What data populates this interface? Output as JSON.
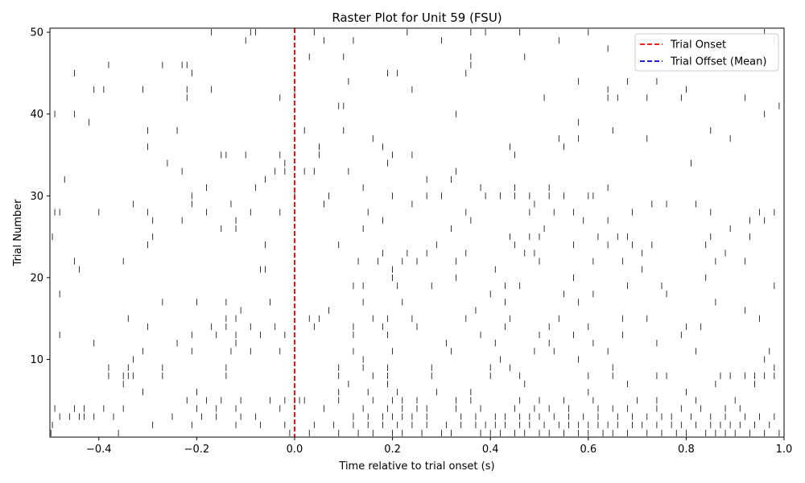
{
  "chart_data": {
    "type": "raster",
    "title": "Raster Plot for Unit 59 (FSU)",
    "xlabel": "Time relative to trial onset (s)",
    "ylabel": "Trial Number",
    "xlim": [
      -0.5,
      1.0
    ],
    "ylim": [
      0.5,
      50.5
    ],
    "xticks": [
      -0.4,
      -0.2,
      0.0,
      0.2,
      0.4,
      0.6,
      0.8,
      1.0
    ],
    "xtick_labels": [
      "−0.4",
      "−0.2",
      "0.0",
      "0.2",
      "0.4",
      "0.6",
      "0.8",
      "1.0"
    ],
    "yticks": [
      10,
      20,
      30,
      40,
      50
    ],
    "ytick_labels": [
      "10",
      "20",
      "30",
      "40",
      "50"
    ],
    "grid": false,
    "legend": {
      "placement": "top-right",
      "entries": [
        {
          "label": "Trial Onset",
          "color": "#ff0000",
          "style": "dashed"
        },
        {
          "label": "Trial Offset (Mean)",
          "color": "#0000cc",
          "style": "dashed"
        }
      ]
    },
    "onset_line": {
      "x": 0.0,
      "color": "#dd0000"
    },
    "spike_color": "#000000",
    "trials": [
      {
        "trial": 1,
        "spikes": [
          -0.498,
          -0.36,
          -0.01,
          0.03,
          0.09,
          0.13,
          0.16,
          0.2,
          0.22,
          0.26,
          0.3,
          0.32,
          0.38,
          0.4,
          0.42,
          0.45,
          0.47,
          0.5,
          0.52,
          0.55,
          0.58,
          0.6,
          0.63,
          0.65,
          0.68,
          0.72,
          0.75,
          0.78,
          0.8,
          0.84,
          0.86,
          0.88,
          0.9,
          0.93,
          0.96,
          0.99
        ]
      },
      {
        "trial": 2,
        "spikes": [
          -0.495,
          -0.29,
          -0.21,
          -0.12,
          -0.07,
          -0.02,
          0.04,
          0.08,
          0.12,
          0.15,
          0.18,
          0.21,
          0.24,
          0.27,
          0.31,
          0.34,
          0.37,
          0.39,
          0.41,
          0.43,
          0.46,
          0.48,
          0.51,
          0.54,
          0.56,
          0.58,
          0.6,
          0.62,
          0.64,
          0.66,
          0.69,
          0.71,
          0.74,
          0.77,
          0.79,
          0.82,
          0.85,
          0.87,
          0.89,
          0.91,
          0.94,
          0.97
        ]
      },
      {
        "trial": 3,
        "spikes": [
          -0.48,
          -0.46,
          -0.44,
          -0.43,
          -0.41,
          -0.37,
          -0.25,
          -0.19,
          -0.16,
          -0.11,
          -0.08,
          0.12,
          0.15,
          0.18,
          0.2,
          0.22,
          0.24,
          0.27,
          0.34,
          0.37,
          0.41,
          0.43,
          0.46,
          0.48,
          0.5,
          0.53,
          0.56,
          0.59,
          0.62,
          0.66,
          0.69,
          0.72,
          0.75,
          0.77,
          0.81,
          0.85,
          0.88,
          0.92,
          0.95,
          0.98
        ]
      },
      {
        "trial": 4,
        "spikes": [
          -0.49,
          -0.45,
          -0.43,
          -0.39,
          -0.35,
          -0.2,
          -0.16,
          -0.12,
          -0.03,
          0.06,
          0.14,
          0.19,
          0.22,
          0.25,
          0.27,
          0.33,
          0.38,
          0.45,
          0.49,
          0.52,
          0.56,
          0.62,
          0.65,
          0.68,
          0.74,
          0.79,
          0.83,
          0.88,
          0.91
        ]
      },
      {
        "trial": 5,
        "spikes": [
          -0.22,
          -0.18,
          -0.15,
          -0.11,
          -0.05,
          -0.02,
          0.0,
          0.01,
          0.02,
          0.09,
          0.16,
          0.2,
          0.22,
          0.25,
          0.33,
          0.36,
          0.46,
          0.5,
          0.55,
          0.61,
          0.7,
          0.74,
          0.82,
          0.9
        ]
      },
      {
        "trial": 6,
        "spikes": [
          -0.31,
          -0.2,
          0.09,
          0.15,
          0.21,
          0.29,
          0.36,
          0.6,
          0.8
        ]
      },
      {
        "trial": 7,
        "spikes": [
          -0.35,
          0.11,
          0.19,
          0.47,
          0.68,
          0.86,
          0.94
        ]
      },
      {
        "trial": 8,
        "spikes": [
          -0.38,
          -0.35,
          -0.34,
          -0.33,
          -0.27,
          -0.14,
          0.09,
          0.16,
          0.19,
          0.28,
          0.4,
          0.46,
          0.6,
          0.65,
          0.74,
          0.76,
          0.87,
          0.89,
          0.92,
          0.94,
          0.96,
          0.98
        ]
      },
      {
        "trial": 9,
        "spikes": [
          -0.38,
          -0.34,
          -0.27,
          -0.14,
          0.09,
          0.14,
          0.19,
          0.28,
          0.4,
          0.44,
          0.65,
          0.98
        ]
      },
      {
        "trial": 10,
        "spikes": [
          -0.33,
          0.14,
          0.42,
          0.58,
          0.96
        ]
      },
      {
        "trial": 11,
        "spikes": [
          -0.31,
          -0.21,
          -0.13,
          -0.09,
          -0.03,
          0.12,
          0.2,
          0.32,
          0.49,
          0.53,
          0.64,
          0.82,
          0.97
        ]
      },
      {
        "trial": 12,
        "spikes": [
          -0.41,
          -0.24,
          -0.12,
          0.31,
          0.41,
          0.52,
          0.61,
          0.74
        ]
      },
      {
        "trial": 13,
        "spikes": [
          -0.48,
          -0.21,
          -0.16,
          -0.12,
          -0.07,
          -0.02,
          0.12,
          0.19,
          0.38,
          0.5,
          0.57,
          0.67,
          0.79
        ]
      },
      {
        "trial": 14,
        "spikes": [
          -0.3,
          -0.17,
          -0.14,
          -0.09,
          -0.04,
          0.04,
          0.12,
          0.18,
          0.25,
          0.43,
          0.52,
          0.6,
          0.8,
          0.83
        ]
      },
      {
        "trial": 15,
        "spikes": [
          -0.34,
          -0.14,
          -0.12,
          0.03,
          0.05,
          0.16,
          0.19,
          0.24,
          0.35,
          0.44,
          0.54,
          0.67,
          0.72,
          0.95
        ]
      },
      {
        "trial": 16,
        "spikes": [
          -0.11,
          0.07,
          0.37,
          0.92
        ]
      },
      {
        "trial": 17,
        "spikes": [
          -0.27,
          -0.2,
          -0.14,
          -0.05,
          0.14,
          0.22,
          0.43,
          0.58,
          0.86
        ]
      },
      {
        "trial": 18,
        "spikes": [
          -0.48,
          0.4,
          0.55,
          0.61,
          0.76
        ]
      },
      {
        "trial": 19,
        "spikes": [
          0.12,
          0.14,
          0.21,
          0.28,
          0.43,
          0.46,
          0.68,
          0.75,
          0.98
        ]
      },
      {
        "trial": 20,
        "spikes": [
          0.2,
          0.33,
          0.57,
          0.84
        ]
      },
      {
        "trial": 21,
        "spikes": [
          -0.44,
          -0.07,
          -0.06,
          0.2,
          0.41,
          0.71
        ]
      },
      {
        "trial": 22,
        "spikes": [
          -0.45,
          -0.35,
          0.13,
          0.17,
          0.22,
          0.25,
          0.33,
          0.5,
          0.61,
          0.67,
          0.86,
          0.92
        ]
      },
      {
        "trial": 23,
        "spikes": [
          0.18,
          0.23,
          0.27,
          0.35,
          0.47,
          0.49,
          0.71,
          0.88
        ]
      },
      {
        "trial": 24,
        "spikes": [
          -0.3,
          -0.06,
          0.09,
          0.29,
          0.45,
          0.57,
          0.64,
          0.69,
          0.73,
          0.84
        ]
      },
      {
        "trial": 25,
        "spikes": [
          -0.495,
          -0.29,
          0.44,
          0.48,
          0.5,
          0.62,
          0.66,
          0.68,
          0.85,
          0.93
        ]
      },
      {
        "trial": 26,
        "spikes": [
          -0.15,
          -0.12,
          0.14,
          0.32,
          0.51,
          0.89
        ]
      },
      {
        "trial": 27,
        "spikes": [
          -0.29,
          -0.23,
          -0.12,
          0.18,
          0.36,
          0.59,
          0.64,
          0.93,
          0.96
        ]
      },
      {
        "trial": 28,
        "spikes": [
          -0.49,
          -0.48,
          -0.4,
          -0.3,
          -0.18,
          -0.09,
          -0.03,
          0.15,
          0.35,
          0.48,
          0.53,
          0.57,
          0.69,
          0.85,
          0.95,
          0.98
        ]
      },
      {
        "trial": 29,
        "spikes": [
          -0.33,
          -0.21,
          -0.13,
          0.06,
          0.24,
          0.49,
          0.73,
          0.76,
          0.82
        ]
      },
      {
        "trial": 30,
        "spikes": [
          -0.21,
          0.0,
          0.07,
          0.2,
          0.27,
          0.3,
          0.39,
          0.42,
          0.45,
          0.48,
          0.52,
          0.55,
          0.6,
          0.61
        ]
      },
      {
        "trial": 31,
        "spikes": [
          -0.18,
          -0.08,
          0.14,
          0.38,
          0.45,
          0.52,
          0.64
        ]
      },
      {
        "trial": 32,
        "spikes": [
          -0.47,
          -0.06,
          0.27,
          0.32
        ]
      },
      {
        "trial": 33,
        "spikes": [
          -0.23,
          -0.04,
          -0.02,
          0.02,
          0.04,
          0.11,
          0.33
        ]
      },
      {
        "trial": 34,
        "spikes": [
          -0.26,
          -0.02,
          0.19,
          0.81
        ]
      },
      {
        "trial": 35,
        "spikes": [
          -0.15,
          -0.14,
          -0.1,
          -0.03,
          0.05,
          0.2,
          0.24,
          0.45
        ]
      },
      {
        "trial": 36,
        "spikes": [
          -0.3,
          0.05,
          0.18,
          0.44,
          0.55
        ]
      },
      {
        "trial": 37,
        "spikes": [
          0.16,
          0.54,
          0.58,
          0.72,
          0.89
        ]
      },
      {
        "trial": 38,
        "spikes": [
          -0.3,
          -0.24,
          0.02,
          0.1,
          0.65,
          0.85
        ]
      },
      {
        "trial": 39,
        "spikes": [
          -0.42,
          0.58
        ]
      },
      {
        "trial": 40,
        "spikes": [
          -0.49,
          -0.45,
          0.33,
          0.96
        ]
      },
      {
        "trial": 41,
        "spikes": [
          0.09,
          0.1,
          0.99
        ]
      },
      {
        "trial": 42,
        "spikes": [
          -0.22,
          -0.03,
          0.51,
          0.64,
          0.66,
          0.72,
          0.79,
          0.92
        ]
      },
      {
        "trial": 43,
        "spikes": [
          -0.41,
          -0.39,
          -0.31,
          -0.22,
          -0.17,
          0.0,
          0.24,
          0.64,
          0.8
        ]
      },
      {
        "trial": 44,
        "spikes": [
          0.11,
          0.58,
          0.68,
          0.74
        ]
      },
      {
        "trial": 45,
        "spikes": [
          -0.45,
          -0.21,
          0.19,
          0.21,
          0.35
        ]
      },
      {
        "trial": 46,
        "spikes": [
          -0.38,
          -0.27,
          -0.23,
          -0.22,
          0.36
        ]
      },
      {
        "trial": 47,
        "spikes": [
          0.03,
          0.1,
          0.36,
          0.47
        ]
      },
      {
        "trial": 48,
        "spikes": [
          0.64
        ]
      },
      {
        "trial": 49,
        "spikes": [
          -0.1,
          0.06,
          0.12,
          0.3,
          0.54,
          0.98
        ]
      },
      {
        "trial": 50,
        "spikes": [
          -0.17,
          -0.09,
          -0.08,
          0.04,
          0.23,
          0.36,
          0.39,
          0.46,
          0.6,
          0.96
        ]
      }
    ]
  }
}
